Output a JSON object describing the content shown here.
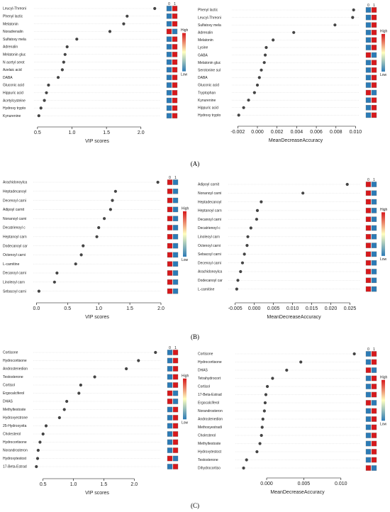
{
  "colors": {
    "high": "#d7191c",
    "mid": "#ffffbf",
    "low": "#2c7bb6",
    "point": "#444444",
    "grid": "#d0d0d0"
  },
  "legend": {
    "high": "High",
    "low": "Low"
  },
  "heatmap_headers": [
    "0",
    "1"
  ],
  "sections": [
    {
      "label": "(A)"
    },
    {
      "label": "(B)"
    },
    {
      "label": "(C)"
    }
  ],
  "chart_data": [
    {
      "type": "scatter",
      "xlabel": "VIP scores",
      "xlim": [
        0.45,
        2.28
      ],
      "xticks": [
        0.5,
        1.0,
        1.5,
        2.0
      ],
      "xticklabels": [
        "0.5",
        "1.0",
        "1.5",
        "2.0"
      ],
      "labels": [
        "Leucyl-Threoni",
        "Phenyl lactic",
        "Melatonin",
        "Noradrenalin",
        "Sulfatoxy mela",
        "Adrenalin",
        "Melatonin gluc",
        "N acetyl serot",
        "Azelaic acid",
        "DABA",
        "Gluconic acid",
        "Hippuric acid",
        "Acetylcysteine",
        "Hydroxy trypto",
        "Kynurenine"
      ],
      "values": [
        2.2,
        1.8,
        1.75,
        1.55,
        1.07,
        0.93,
        0.9,
        0.88,
        0.86,
        0.8,
        0.66,
        0.63,
        0.6,
        0.55,
        0.52
      ],
      "heat": [
        [
          "low",
          "high"
        ],
        [
          "low",
          "high"
        ],
        [
          "low",
          "high"
        ],
        [
          "high",
          "low"
        ],
        [
          "low",
          "high"
        ],
        [
          "low",
          "high"
        ],
        [
          "low",
          "high"
        ],
        [
          "low",
          "high"
        ],
        [
          "low",
          "high"
        ],
        [
          "low",
          "high"
        ],
        [
          "low",
          "high"
        ],
        [
          "low",
          "high"
        ],
        [
          "low",
          "high"
        ],
        [
          "low",
          "high"
        ],
        [
          "low",
          "high"
        ]
      ]
    },
    {
      "type": "scatter",
      "xlabel": "MeanDecreaseAccuracy",
      "xlim": [
        -0.0026,
        0.0104
      ],
      "xticks": [
        -0.002,
        0.0,
        0.002,
        0.004,
        0.006,
        0.008,
        0.01
      ],
      "xticklabels": [
        "-0.002",
        "0.000",
        "0.002",
        "0.004",
        "0.006",
        "0.008",
        "0.010"
      ],
      "labels": [
        "Phenyl lactic",
        "Leucyl-Threoni",
        "Sulfatoxy mela",
        "Adrenalin",
        "Melatonin",
        "Lysine",
        "GABA",
        "Melatonin gluc",
        "Serotonine sul",
        "DABA",
        "Gluconic acid",
        "Tryptophan",
        "Kynurenine",
        "Hippuric acid",
        "Hydroxy trypto"
      ],
      "values": [
        0.0098,
        0.0097,
        0.0079,
        0.0037,
        0.0016,
        0.0009,
        0.0008,
        0.0007,
        0.0004,
        0.0002,
        0.0,
        -0.0003,
        -0.0009,
        -0.0014,
        -0.0019
      ],
      "heat": [
        [
          "low",
          "high"
        ],
        [
          "low",
          "high"
        ],
        [
          "low",
          "high"
        ],
        [
          "low",
          "high"
        ],
        [
          "low",
          "high"
        ],
        [
          "low",
          "high"
        ],
        [
          "high",
          "low"
        ],
        [
          "low",
          "high"
        ],
        [
          "low",
          "high"
        ],
        [
          "low",
          "high"
        ],
        [
          "low",
          "high"
        ],
        [
          "high",
          "low"
        ],
        [
          "low",
          "high"
        ],
        [
          "low",
          "high"
        ],
        [
          "low",
          "high"
        ]
      ]
    },
    {
      "type": "scatter",
      "xlabel": "VIP scores",
      "xlim": [
        -0.05,
        2.0
      ],
      "xticks": [
        0.0,
        0.5,
        1.0,
        1.5,
        2.0
      ],
      "xticklabels": [
        "0.0",
        "0.5",
        "1.0",
        "1.5",
        "2.0"
      ],
      "labels": [
        "Arachidonoylca",
        "Heptadecanoyl",
        "Decenoyl carni",
        "Adipoyl carnit",
        "Nonanoyl carni",
        "Decatrienoyl c",
        "Heptanoyl carn",
        "Dodecanoyl car",
        "Octenoyl carni",
        "L-carnitine",
        "Decanoyl carni",
        "Linoleoyl carn",
        "Sebacoyl carni"
      ],
      "values": [
        1.95,
        1.27,
        1.22,
        1.19,
        1.09,
        1.0,
        0.97,
        0.75,
        0.72,
        0.63,
        0.33,
        0.29,
        0.04
      ],
      "heat": [
        [
          "high",
          "low"
        ],
        [
          "high",
          "low"
        ],
        [
          "high",
          "low"
        ],
        [
          "high",
          "low"
        ],
        [
          "high",
          "low"
        ],
        [
          "high",
          "low"
        ],
        [
          "high",
          "low"
        ],
        [
          "high",
          "low"
        ],
        [
          "high",
          "low"
        ],
        [
          "high",
          "low"
        ],
        [
          "high",
          "low"
        ],
        [
          "high",
          "low"
        ],
        [
          "high",
          "low"
        ]
      ]
    },
    {
      "type": "scatter",
      "xlabel": "MeanDecreaseAccuracy",
      "xlim": [
        -0.0068,
        0.0275
      ],
      "xticks": [
        -0.005,
        0.0,
        0.005,
        0.01,
        0.015,
        0.02,
        0.025
      ],
      "xticklabels": [
        "-0.005",
        "0.000",
        "0.005",
        "0.010",
        "0.015",
        "0.020",
        "0.025"
      ],
      "labels": [
        "Adipoyl carnit",
        "Nonanoyl carni",
        "Heptadecanoyl",
        "Heptanoyl carn",
        "Decanoyl carni",
        "Decatrienoyl c",
        "Linoleoyl carn",
        "Octenoyl carni",
        "Sebacoyl carni",
        "Decenoyl carni",
        "Arachidonoylca",
        "Dodecanoyl car",
        "L-carnitine"
      ],
      "values": [
        0.0243,
        0.0127,
        0.0018,
        0.0008,
        0.0006,
        -0.0009,
        -0.0017,
        -0.0019,
        -0.0026,
        -0.0031,
        -0.0036,
        -0.0043,
        -0.0046
      ],
      "heat": [
        [
          "high",
          "low"
        ],
        [
          "high",
          "low"
        ],
        [
          "high",
          "low"
        ],
        [
          "high",
          "low"
        ],
        [
          "high",
          "low"
        ],
        [
          "high",
          "low"
        ],
        [
          "high",
          "low"
        ],
        [
          "high",
          "low"
        ],
        [
          "high",
          "low"
        ],
        [
          "high",
          "low"
        ],
        [
          "high",
          "low"
        ],
        [
          "high",
          "low"
        ],
        [
          "high",
          "low"
        ]
      ]
    },
    {
      "type": "scatter",
      "xlabel": "VIP scores",
      "xlim": [
        0.34,
        2.44
      ],
      "xticks": [
        0.5,
        1.0,
        1.5,
        2.0
      ],
      "xticklabels": [
        "0.5",
        "1.0",
        "1.5",
        "2.0"
      ],
      "labels": [
        "Cortisone",
        "Hydrocortisone",
        "Androstenedion",
        "Testosterone",
        "Cortisol",
        "Ergocalciferol",
        "DHAS",
        "Methyltestoste",
        "Hydroxyestrone",
        "25-Hydroxyvita",
        "Cholesterol",
        "Hydrocortisone",
        "Norandrosteron",
        "Hydroxytestost",
        "17-Beta-Estrad"
      ],
      "values": [
        2.35,
        2.07,
        1.87,
        1.35,
        1.12,
        1.09,
        0.89,
        0.85,
        0.77,
        0.55,
        0.5,
        0.45,
        0.42,
        0.41,
        0.39
      ],
      "heat": [
        [
          "low",
          "high"
        ],
        [
          "low",
          "high"
        ],
        [
          "low",
          "high"
        ],
        [
          "low",
          "high"
        ],
        [
          "low",
          "high"
        ],
        [
          "high",
          "low"
        ],
        [
          "high",
          "low"
        ],
        [
          "low",
          "high"
        ],
        [
          "low",
          "high"
        ],
        [
          "low",
          "high"
        ],
        [
          "low",
          "high"
        ],
        [
          "low",
          "high"
        ],
        [
          "low",
          "high"
        ],
        [
          "high",
          "low"
        ],
        [
          "low",
          "high"
        ]
      ]
    },
    {
      "type": "scatter",
      "xlabel": "MeanDecreaseAccuracy",
      "xlim": [
        -0.0042,
        0.0125
      ],
      "xticks": [
        0.0,
        0.005,
        0.01
      ],
      "xticklabels": [
        "0.000",
        "0.005",
        "0.010"
      ],
      "labels": [
        "Cortisone",
        "Hydrocortisone",
        "DHAS",
        "Tetrahydrocort",
        "Cortisol",
        "17-Beta-Estrad",
        "Ergocalciferol",
        "Norandrosteron",
        "Androstenedion",
        "Methoxyestradi",
        "Cholesterol",
        "Methyltestoste",
        "Hydroxytestost",
        "Testosterone",
        "Dihydrocortiso"
      ],
      "values": [
        0.0118,
        0.0046,
        0.0027,
        0.0008,
        0.0001,
        -0.0001,
        -0.0002,
        -0.0003,
        -0.0005,
        -0.0006,
        -0.0007,
        -0.0009,
        -0.0013,
        -0.0027,
        -0.0031
      ],
      "heat": [
        [
          "low",
          "high"
        ],
        [
          "low",
          "high"
        ],
        [
          "high",
          "low"
        ],
        [
          "low",
          "high"
        ],
        [
          "low",
          "high"
        ],
        [
          "low",
          "high"
        ],
        [
          "high",
          "low"
        ],
        [
          "low",
          "high"
        ],
        [
          "low",
          "high"
        ],
        [
          "low",
          "high"
        ],
        [
          "low",
          "high"
        ],
        [
          "low",
          "high"
        ],
        [
          "low",
          "high"
        ],
        [
          "low",
          "high"
        ],
        [
          "high",
          "low"
        ]
      ]
    }
  ]
}
